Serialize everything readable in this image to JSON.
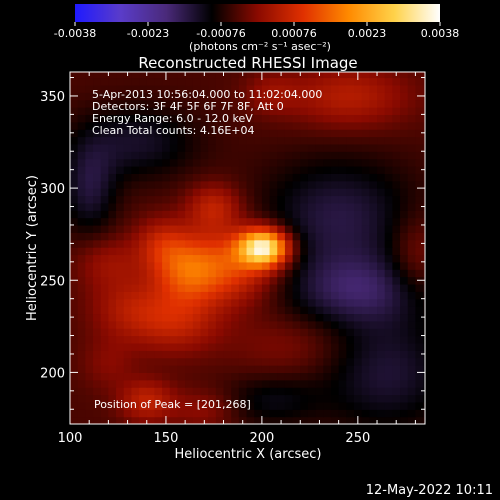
{
  "chart_data": {
    "type": "heatmap",
    "title": "Reconstructed RHESSI Image",
    "xlabel": "Heliocentric X (arcsec)",
    "ylabel": "Heliocentric Y (arcsec)",
    "xlim": [
      100,
      285
    ],
    "ylim": [
      172,
      363
    ],
    "x_ticks": [
      100,
      150,
      200,
      250
    ],
    "y_ticks": [
      200,
      250,
      300,
      350
    ],
    "colorbar": {
      "range": [
        -0.0038,
        0.0038
      ],
      "ticks": [
        "-0.0038",
        "-0.0023",
        "-0.00076",
        "0.00076",
        "0.0023",
        "0.0038"
      ],
      "unit_label": "(photons cm⁻² s⁻¹ asec⁻²)",
      "colors": [
        "#1f1aff",
        "#5a3cc9",
        "#4a2a7a",
        "#000000",
        "#8a0a00",
        "#e03000",
        "#ff8a00",
        "#ffd24a",
        "#ffffff"
      ]
    },
    "annotations": [
      "5-Apr-2013 10:56:04.000 to 11:02:04.000",
      "Detectors: 3F 4F 5F 6F 7F 8F, Att 0",
      "Energy Range: 6.0 - 12.0 keV",
      "Clean     Total counts: 4.16E+04"
    ],
    "peak_label": "Position of Peak = [201,268]",
    "peak": [
      201,
      268
    ],
    "sources": [
      {
        "x": 201,
        "y": 268,
        "sigma_x": 9,
        "sigma_y": 7,
        "amp": 0.0038
      },
      {
        "x": 182,
        "y": 258,
        "sigma_x": 18,
        "sigma_y": 14,
        "amp": 0.0016
      },
      {
        "x": 160,
        "y": 255,
        "sigma_x": 12,
        "sigma_y": 12,
        "amp": 0.0012
      },
      {
        "x": 148,
        "y": 270,
        "sigma_x": 10,
        "sigma_y": 10,
        "amp": 0.0009
      },
      {
        "x": 155,
        "y": 228,
        "sigma_x": 16,
        "sigma_y": 12,
        "amp": 0.001
      },
      {
        "x": 175,
        "y": 290,
        "sigma_x": 10,
        "sigma_y": 9,
        "amp": 0.001
      },
      {
        "x": 130,
        "y": 235,
        "sigma_x": 14,
        "sigma_y": 12,
        "amp": 0.0007
      },
      {
        "x": 120,
        "y": 260,
        "sigma_x": 12,
        "sigma_y": 10,
        "amp": 0.0006
      },
      {
        "x": 245,
        "y": 350,
        "sigma_x": 22,
        "sigma_y": 12,
        "amp": 0.0009
      },
      {
        "x": 205,
        "y": 352,
        "sigma_x": 10,
        "sigma_y": 8,
        "amp": 0.0005
      },
      {
        "x": 280,
        "y": 262,
        "sigma_x": 10,
        "sigma_y": 16,
        "amp": 0.0006
      },
      {
        "x": 215,
        "y": 215,
        "sigma_x": 22,
        "sigma_y": 12,
        "amp": 0.0004
      },
      {
        "x": 140,
        "y": 185,
        "sigma_x": 10,
        "sigma_y": 8,
        "amp": 0.001
      },
      {
        "x": 170,
        "y": 180,
        "sigma_x": 12,
        "sigma_y": 8,
        "amp": 0.0005
      },
      {
        "x": 120,
        "y": 205,
        "sigma_x": 10,
        "sigma_y": 10,
        "amp": 0.0004
      },
      {
        "x": 110,
        "y": 300,
        "sigma_x": 10,
        "sigma_y": 18,
        "amp": -0.0009
      },
      {
        "x": 240,
        "y": 285,
        "sigma_x": 28,
        "sigma_y": 22,
        "amp": -0.001
      },
      {
        "x": 250,
        "y": 245,
        "sigma_x": 28,
        "sigma_y": 14,
        "amp": -0.0011
      },
      {
        "x": 135,
        "y": 325,
        "sigma_x": 22,
        "sigma_y": 14,
        "amp": -0.0008
      },
      {
        "x": 265,
        "y": 200,
        "sigma_x": 24,
        "sigma_y": 22,
        "amp": -0.0009
      },
      {
        "x": 205,
        "y": 185,
        "sigma_x": 18,
        "sigma_y": 10,
        "amp": -0.0006
      }
    ]
  },
  "footer_date": "12-May-2022 10:11"
}
